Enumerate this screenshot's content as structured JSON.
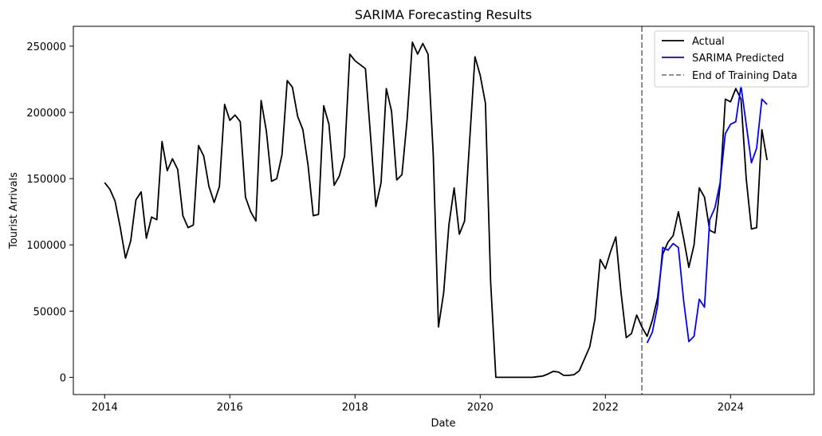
{
  "chart_data": {
    "type": "line",
    "title": "SARIMA Forecasting Results",
    "xlabel": "Date",
    "ylabel": "Tourist Arrivals",
    "xlim": [
      "2013-07",
      "2025-05"
    ],
    "ylim": [
      -13000,
      265000
    ],
    "x_ticks": [
      "2014",
      "2016",
      "2018",
      "2020",
      "2022",
      "2024"
    ],
    "y_ticks": [
      0,
      50000,
      100000,
      150000,
      200000,
      250000
    ],
    "grid": false,
    "legend_position": "upper-right",
    "series": [
      {
        "name": "Actual",
        "color": "#000000",
        "style": "solid",
        "points": [
          [
            "2014-01",
            147000
          ],
          [
            "2014-02",
            142000
          ],
          [
            "2014-03",
            133000
          ],
          [
            "2014-04",
            113000
          ],
          [
            "2014-05",
            90000
          ],
          [
            "2014-06",
            103000
          ],
          [
            "2014-07",
            134000
          ],
          [
            "2014-08",
            140000
          ],
          [
            "2014-09",
            105000
          ],
          [
            "2014-10",
            121000
          ],
          [
            "2014-11",
            119000
          ],
          [
            "2014-12",
            178000
          ],
          [
            "2015-01",
            156000
          ],
          [
            "2015-02",
            165000
          ],
          [
            "2015-03",
            157000
          ],
          [
            "2015-04",
            122000
          ],
          [
            "2015-05",
            113000
          ],
          [
            "2015-06",
            115000
          ],
          [
            "2015-07",
            175000
          ],
          [
            "2015-08",
            167000
          ],
          [
            "2015-09",
            144000
          ],
          [
            "2015-10",
            132000
          ],
          [
            "2015-11",
            144000
          ],
          [
            "2015-12",
            206000
          ],
          [
            "2016-01",
            194000
          ],
          [
            "2016-02",
            198000
          ],
          [
            "2016-03",
            193000
          ],
          [
            "2016-04",
            136000
          ],
          [
            "2016-05",
            125000
          ],
          [
            "2016-06",
            118000
          ],
          [
            "2016-07",
            209000
          ],
          [
            "2016-08",
            186000
          ],
          [
            "2016-09",
            148000
          ],
          [
            "2016-10",
            150000
          ],
          [
            "2016-11",
            168000
          ],
          [
            "2016-12",
            224000
          ],
          [
            "2017-01",
            219000
          ],
          [
            "2017-02",
            197000
          ],
          [
            "2017-03",
            187000
          ],
          [
            "2017-04",
            160000
          ],
          [
            "2017-05",
            122000
          ],
          [
            "2017-06",
            123000
          ],
          [
            "2017-07",
            205000
          ],
          [
            "2017-08",
            191000
          ],
          [
            "2017-09",
            145000
          ],
          [
            "2017-10",
            152000
          ],
          [
            "2017-11",
            167000
          ],
          [
            "2017-12",
            244000
          ],
          [
            "2018-01",
            239000
          ],
          [
            "2018-02",
            236000
          ],
          [
            "2018-03",
            233000
          ],
          [
            "2018-04",
            181000
          ],
          [
            "2018-05",
            129000
          ],
          [
            "2018-06",
            147000
          ],
          [
            "2018-07",
            218000
          ],
          [
            "2018-08",
            201000
          ],
          [
            "2018-09",
            149000
          ],
          [
            "2018-10",
            153000
          ],
          [
            "2018-11",
            195000
          ],
          [
            "2018-12",
            253000
          ],
          [
            "2019-01",
            244000
          ],
          [
            "2019-02",
            252000
          ],
          [
            "2019-03",
            244000
          ],
          [
            "2019-04",
            168000
          ],
          [
            "2019-05",
            38000
          ],
          [
            "2019-06",
            64000
          ],
          [
            "2019-07",
            115000
          ],
          [
            "2019-08",
            143000
          ],
          [
            "2019-09",
            108000
          ],
          [
            "2019-10",
            118000
          ],
          [
            "2019-11",
            180000
          ],
          [
            "2019-12",
            242000
          ],
          [
            "2020-01",
            228000
          ],
          [
            "2020-02",
            207000
          ],
          [
            "2020-03",
            72000
          ],
          [
            "2020-04",
            0
          ],
          [
            "2020-05",
            0
          ],
          [
            "2020-06",
            0
          ],
          [
            "2020-07",
            0
          ],
          [
            "2020-08",
            0
          ],
          [
            "2020-09",
            0
          ],
          [
            "2020-10",
            0
          ],
          [
            "2020-11",
            0
          ],
          [
            "2020-12",
            500
          ],
          [
            "2021-01",
            1000
          ],
          [
            "2021-02",
            2500
          ],
          [
            "2021-03",
            4500
          ],
          [
            "2021-04",
            4000
          ],
          [
            "2021-05",
            1500
          ],
          [
            "2021-06",
            1500
          ],
          [
            "2021-07",
            2000
          ],
          [
            "2021-08",
            5000
          ],
          [
            "2021-09",
            14000
          ],
          [
            "2021-10",
            23000
          ],
          [
            "2021-11",
            44000
          ],
          [
            "2021-12",
            89000
          ],
          [
            "2022-01",
            82000
          ],
          [
            "2022-02",
            95000
          ],
          [
            "2022-03",
            106000
          ],
          [
            "2022-04",
            64000
          ],
          [
            "2022-05",
            30000
          ],
          [
            "2022-06",
            33000
          ],
          [
            "2022-07",
            47000
          ],
          [
            "2022-08",
            38000
          ],
          [
            "2022-09",
            31000
          ],
          [
            "2022-10",
            43000
          ],
          [
            "2022-11",
            60000
          ],
          [
            "2022-12",
            93000
          ],
          [
            "2023-01",
            102000
          ],
          [
            "2023-02",
            107000
          ],
          [
            "2023-03",
            125000
          ],
          [
            "2023-04",
            105000
          ],
          [
            "2023-05",
            83000
          ],
          [
            "2023-06",
            100000
          ],
          [
            "2023-07",
            143000
          ],
          [
            "2023-08",
            136000
          ],
          [
            "2023-09",
            111000
          ],
          [
            "2023-10",
            109000
          ],
          [
            "2023-11",
            145000
          ],
          [
            "2023-12",
            210000
          ],
          [
            "2024-01",
            208000
          ],
          [
            "2024-02",
            218000
          ],
          [
            "2024-03",
            210000
          ],
          [
            "2024-04",
            150000
          ],
          [
            "2024-05",
            112000
          ],
          [
            "2024-06",
            113000
          ],
          [
            "2024-07",
            187000
          ],
          [
            "2024-08",
            164000
          ]
        ]
      },
      {
        "name": "SARIMA Predicted",
        "color": "#0000ff",
        "style": "solid",
        "points": [
          [
            "2022-09",
            26000
          ],
          [
            "2022-10",
            34000
          ],
          [
            "2022-11",
            54000
          ],
          [
            "2022-12",
            98000
          ],
          [
            "2023-01",
            96000
          ],
          [
            "2023-02",
            101000
          ],
          [
            "2023-03",
            98000
          ],
          [
            "2023-04",
            58000
          ],
          [
            "2023-05",
            27000
          ],
          [
            "2023-06",
            31000
          ],
          [
            "2023-07",
            59000
          ],
          [
            "2023-08",
            53000
          ],
          [
            "2023-09",
            119000
          ],
          [
            "2023-10",
            128000
          ],
          [
            "2023-11",
            147000
          ],
          [
            "2023-12",
            184000
          ],
          [
            "2024-01",
            191000
          ],
          [
            "2024-02",
            193000
          ],
          [
            "2024-03",
            220000
          ],
          [
            "2024-04",
            191000
          ],
          [
            "2024-05",
            162000
          ],
          [
            "2024-06",
            173000
          ],
          [
            "2024-07",
            210000
          ],
          [
            "2024-08",
            206000
          ]
        ]
      }
    ],
    "vertical_line": {
      "name": "End of Training Data",
      "x": "2022-08",
      "color": "#808080",
      "style": "dashed"
    }
  }
}
